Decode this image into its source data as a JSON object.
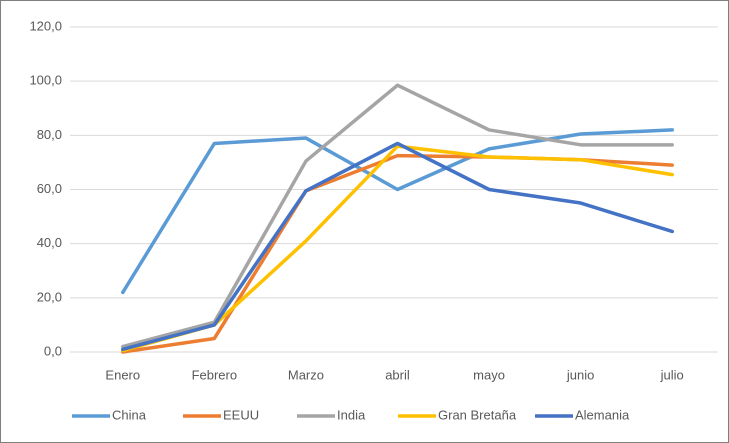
{
  "chart_data": {
    "type": "line",
    "categories": [
      "Enero",
      "Febrero",
      "Marzo",
      "abril",
      "mayo",
      "junio",
      "julio"
    ],
    "series": [
      {
        "name": "China",
        "color": "#5b9bd5",
        "values": [
          22,
          77,
          79,
          60,
          75,
          80.5,
          82
        ]
      },
      {
        "name": "EEUU",
        "color": "#ed7d31",
        "values": [
          0,
          5,
          59.5,
          72.5,
          72,
          71,
          69
        ]
      },
      {
        "name": "India",
        "color": "#a5a5a5",
        "values": [
          2,
          11,
          70.5,
          98.5,
          82,
          76.5,
          76.5
        ]
      },
      {
        "name": "Gran Bretaña",
        "color": "#ffc000",
        "values": [
          0.5,
          10,
          41,
          76,
          72,
          71,
          65.5
        ]
      },
      {
        "name": "Alemania",
        "color": "#4472c4",
        "values": [
          1,
          10,
          59.5,
          77,
          60,
          55,
          44.5
        ]
      }
    ],
    "ylim": [
      0,
      120
    ],
    "yticks": [
      {
        "value": 0,
        "label": "0,0"
      },
      {
        "value": 20,
        "label": "20,0"
      },
      {
        "value": 40,
        "label": "40,0"
      },
      {
        "value": 60,
        "label": "60,0"
      },
      {
        "value": 80,
        "label": "80,0"
      },
      {
        "value": 100,
        "label": "100,0"
      },
      {
        "value": 120,
        "label": "120,0"
      }
    ],
    "grid": true,
    "legend": "bottom"
  }
}
